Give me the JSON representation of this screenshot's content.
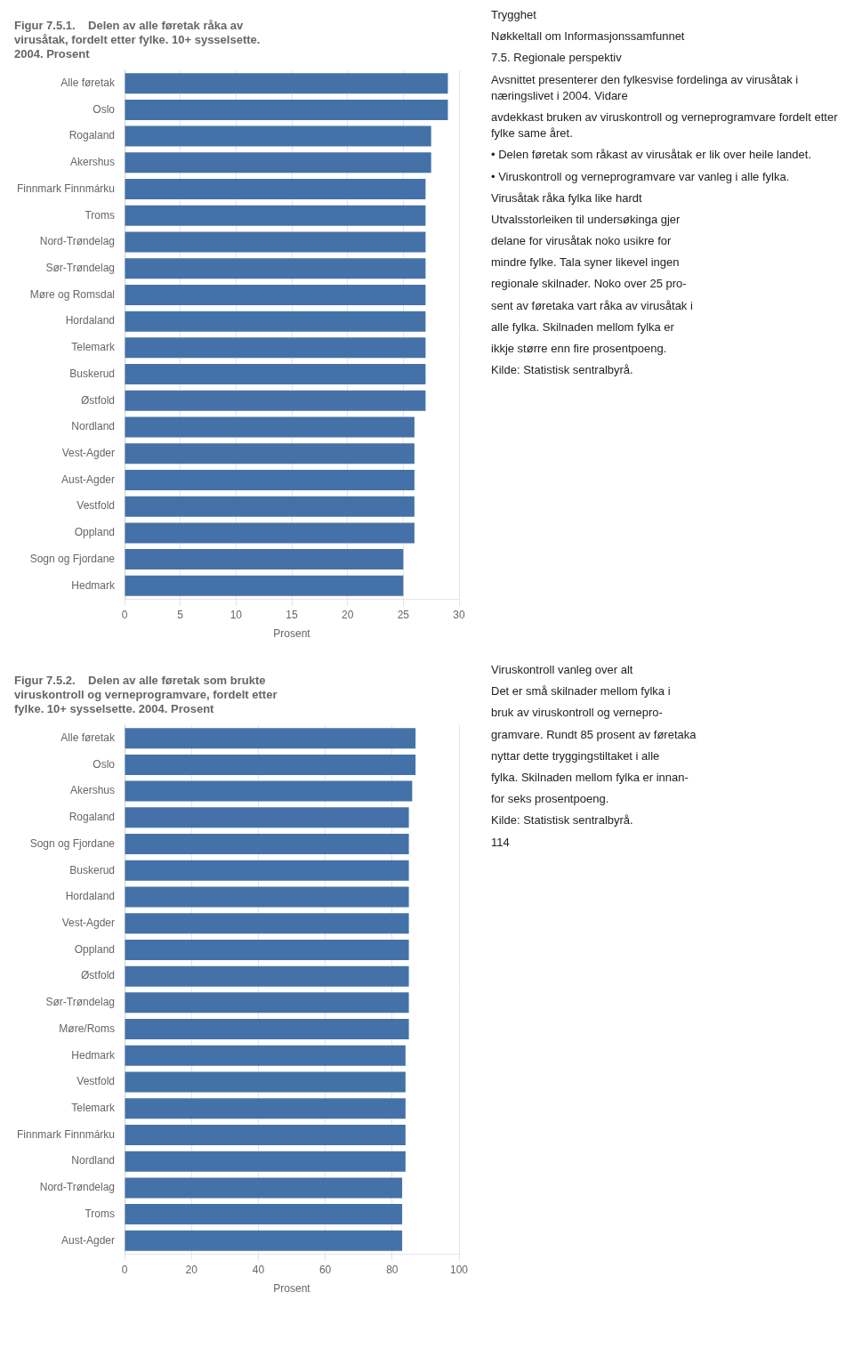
{
  "chart_data": [
    {
      "type": "bar",
      "orientation": "horizontal",
      "title": [
        "Figur 7.5.1.    Delen av alle føretak råka av",
        "virusåtak, fordelt etter fylke. 10+ sysselsette.",
        "2004. Prosent"
      ],
      "categories": [
        "Alle føretak",
        "Oslo",
        "Rogaland",
        "Akershus",
        "Finnmark Finnmárku",
        "Troms",
        "Nord-Trøndelag",
        "Sør-Trøndelag",
        "Møre og Romsdal",
        "Hordaland",
        "Telemark",
        "Buskerud",
        "Østfold",
        "Nordland",
        "Vest-Agder",
        "Aust-Agder",
        "Vestfold",
        "Oppland",
        "Sogn og Fjordane",
        "Hedmark"
      ],
      "values": [
        29,
        29,
        27.5,
        27.5,
        27,
        27,
        27,
        27,
        27,
        27,
        27,
        27,
        27,
        26,
        26,
        26,
        26,
        26,
        25,
        25
      ],
      "color": "#4472A8",
      "xlim": [
        0,
        30
      ],
      "xticks": [
        0,
        5,
        10,
        15,
        20,
        25,
        30
      ],
      "xlabel": "Prosent",
      "grid": true,
      "annotations": [
        "Trygghet",
        "Nøkkeltall om Informasjonssamfunnet",
        "7.5. Regionale perspektiv",
        "Avsnittet presenterer den fylkesvise fordelinga av virusåtak i næringslivet i 2004. Vidare",
        "avdekkast bruken av viruskontroll og verneprogramvare fordelt etter fylke same året.",
        "• Delen føretak som råkast av virusåtak er lik over heile landet.",
        "• Viruskontroll og verneprogramvare var vanleg i alle fylka.",
        "Virusåtak råka fylka like hardt",
        "Utvalsstorleiken til undersøkinga gjer",
        "delane for virusåtak noko usikre for",
        "mindre fylke. Tala syner likevel ingen",
        "regionale skilnader. Noko over 25 pro-",
        "sent av føretaka vart råka av virusåtak i",
        "alle fylka. Skilnaden mellom fylka er",
        "ikkje større enn fire prosentpoeng.",
        "Kilde: Statistisk sentralbyrå."
      ]
    },
    {
      "type": "bar",
      "orientation": "horizontal",
      "title": [
        "Figur 7.5.2.    Delen av alle føretak som brukte",
        "viruskontroll og verneprogramvare, fordelt etter",
        "fylke. 10+ sysselsette. 2004. Prosent"
      ],
      "categories": [
        "Alle føretak",
        "Oslo",
        "Akershus",
        "Rogaland",
        "Sogn og Fjordane",
        "Buskerud",
        "Hordaland",
        "Vest-Agder",
        "Oppland",
        "Østfold",
        "Sør-Trøndelag",
        "Møre/Roms",
        "Hedmark",
        "Vestfold",
        "Telemark",
        "Finnmark Finnmárku",
        "Nordland",
        "Nord-Trøndelag",
        "Troms",
        "Aust-Agder"
      ],
      "values": [
        87,
        87,
        86,
        85,
        85,
        85,
        85,
        85,
        85,
        85,
        85,
        85,
        84,
        84,
        84,
        84,
        84,
        83,
        83,
        83
      ],
      "color": "#4472A8",
      "xlim": [
        0,
        100
      ],
      "xticks": [
        0,
        20,
        40,
        60,
        80,
        100
      ],
      "xlabel": "Prosent",
      "grid": true,
      "annotations": [
        "Viruskontroll vanleg over alt",
        "Det er små skilnader mellom fylka i",
        "bruk av viruskontroll og vernepro-",
        "gramvare. Rundt 85 prosent av føretaka",
        "nyttar dette tryggingstiltaket i alle",
        "fylka. Skilnaden mellom fylka er innan-",
        "for seks prosentpoeng.",
        "Kilde: Statistisk sentralbyrå.",
        "114"
      ]
    }
  ]
}
